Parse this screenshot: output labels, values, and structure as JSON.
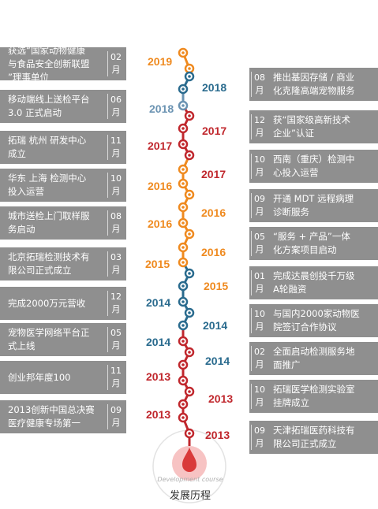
{
  "colors": {
    "orange": "#ef8a1f",
    "blue": "#2a6b8e",
    "lightblue": "#6b93b2",
    "red": "#c0272d",
    "card": "#8f8f8f"
  },
  "left": [
    {
      "year": "2019",
      "month": "02\n月",
      "text": "获选“国家动物健康\n与食品安全创新联盟\n”理事单位",
      "color": "orange"
    },
    {
      "year": "2018",
      "month": "06\n月",
      "text": "移动端线上送检平台\n3.0 正式启动",
      "color": "lightblue"
    },
    {
      "year": "2017",
      "month": "11\n月",
      "text": "拓瑞 杭州 研发中心\n成立",
      "color": "red"
    },
    {
      "year": "2016",
      "month": "10\n月",
      "text": "华东 上海 检测中心\n投入运营",
      "color": "orange"
    },
    {
      "year": "2016",
      "month": "08\n月",
      "text": "城市送检上门取样服\n务启动",
      "color": "orange"
    },
    {
      "year": "2015",
      "month": "03\n月",
      "text": "北京拓瑞检测技术有\n限公司正式成立",
      "color": "orange"
    },
    {
      "year": "2014",
      "month": "12\n月",
      "text": "完成2000万元营收",
      "color": "blue"
    },
    {
      "year": "2014",
      "month": "05\n月",
      "text": "宠物医学网络平台正\n式上线",
      "color": "blue"
    },
    {
      "year": "2013",
      "month": "11\n月",
      "text": "创业邦年度100",
      "color": "red"
    },
    {
      "year": "2013",
      "month": "09\n月",
      "text": "2013创新中国总决赛\n医疗健康专场第一",
      "color": "red"
    }
  ],
  "right": [
    {
      "year": "2018",
      "month": "08\n月",
      "text": "推出基因存储 / 商业\n化克隆高端宠物服务",
      "color": "blue"
    },
    {
      "year": "2017",
      "month": "12\n月",
      "text": "获“国家级高新技术\n企业”认证",
      "color": "red"
    },
    {
      "year": "2017",
      "month": "10\n月",
      "text": "西南（重庆）检测中\n心投入运营",
      "color": "red"
    },
    {
      "year": "2016",
      "month": "09\n月",
      "text": "开通 MDT 远程病理\n诊断服务",
      "color": "orange"
    },
    {
      "year": "2016",
      "month": "05\n月",
      "text": "“服务 + 产品”一体\n化方案项目启动",
      "color": "orange"
    },
    {
      "year": "2015",
      "month": "01\n月",
      "text": "完成达晨创投千万级\nA轮融资",
      "color": "orange"
    },
    {
      "year": "2014",
      "month": "10\n月",
      "text": "与国内2000家动物医\n院签订合作协议",
      "color": "blue"
    },
    {
      "year": "2014",
      "month": "02\n月",
      "text": "全面启动检测服务地\n面推广",
      "color": "blue"
    },
    {
      "year": "2013",
      "month": "10\n月",
      "text": "拓瑞医学检测实验室\n挂牌成立",
      "color": "red"
    },
    {
      "year": "2013",
      "month": "09\n月",
      "text": "天津拓瑞医药科技有\n限公司正式成立",
      "color": "red"
    }
  ],
  "badge": {
    "en": "Development course",
    "cn": "发展历程"
  }
}
